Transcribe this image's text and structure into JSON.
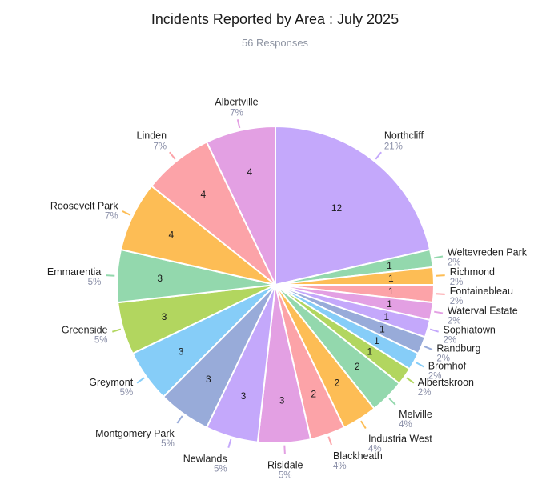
{
  "chart_data": {
    "type": "pie",
    "title": "Incidents Reported by Area : July 2025",
    "subtitle": "56 Responses",
    "slices": [
      {
        "label": "Northcliff",
        "value": 12,
        "percent": "21%",
        "color": "#c4a8fb"
      },
      {
        "label": "Weltevreden Park",
        "value": 1,
        "percent": "2%",
        "color": "#93d8ad"
      },
      {
        "label": "Richmond",
        "value": 1,
        "percent": "2%",
        "color": "#fdbd55"
      },
      {
        "label": "Fontainebleau",
        "value": 1,
        "percent": "2%",
        "color": "#fca3a8"
      },
      {
        "label": "Waterval Estate",
        "value": 1,
        "percent": "2%",
        "color": "#e3a0e3"
      },
      {
        "label": "Sophiatown",
        "value": 1,
        "percent": "2%",
        "color": "#c4a8fb"
      },
      {
        "label": "Randburg",
        "value": 1,
        "percent": "2%",
        "color": "#98abd9"
      },
      {
        "label": "Bromhof",
        "value": 1,
        "percent": "2%",
        "color": "#86cdf8"
      },
      {
        "label": "Albertskroon",
        "value": 1,
        "percent": "2%",
        "color": "#b2d65f"
      },
      {
        "label": "Melville",
        "value": 2,
        "percent": "4%",
        "color": "#93d8ad"
      },
      {
        "label": "Industria West",
        "value": 2,
        "percent": "4%",
        "color": "#fdbd55"
      },
      {
        "label": "Blackheath",
        "value": 2,
        "percent": "4%",
        "color": "#fca3a8"
      },
      {
        "label": "Risidale",
        "value": 3,
        "percent": "5%",
        "color": "#e3a0e3"
      },
      {
        "label": "Newlands",
        "value": 3,
        "percent": "5%",
        "color": "#c4a8fb"
      },
      {
        "label": "Montgomery Park",
        "value": 3,
        "percent": "5%",
        "color": "#98abd9"
      },
      {
        "label": "Greymont",
        "value": 3,
        "percent": "5%",
        "color": "#86cdf8"
      },
      {
        "label": "Greenside",
        "value": 3,
        "percent": "5%",
        "color": "#b2d65f"
      },
      {
        "label": "Emmarentia",
        "value": 3,
        "percent": "5%",
        "color": "#93d8ad"
      },
      {
        "label": "Roosevelt Park",
        "value": 4,
        "percent": "7%",
        "color": "#fdbd55"
      },
      {
        "label": "Linden",
        "value": 4,
        "percent": "7%",
        "color": "#fca3a8"
      },
      {
        "label": "Albertville",
        "value": 4,
        "percent": "7%",
        "color": "#e3a0e3"
      }
    ]
  }
}
